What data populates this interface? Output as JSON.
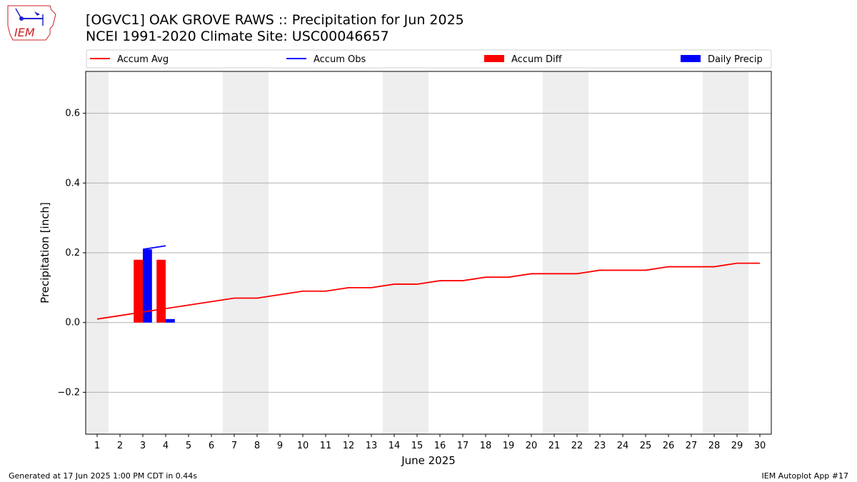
{
  "page": {
    "logo_text": "IEM",
    "title_line1": "[OGVC1] OAK GROVE RAWS :: Precipitation for Jun 2025",
    "title_line2": "NCEI 1991-2020 Climate Site: USC00046657",
    "footer_left": "Generated at 17 Jun 2025 1:00 PM CDT in 0.44s",
    "footer_right": "IEM Autoplot App #17"
  },
  "chart_data": {
    "type": "bar",
    "xlabel": "June 2025",
    "ylabel": "Precipitation [inch]",
    "ylim": [
      -0.32,
      0.72
    ],
    "yticks": [
      -0.2,
      0.0,
      0.2,
      0.4,
      0.6
    ],
    "ytick_labels": [
      "−0.2",
      "0.0",
      "0.2",
      "0.4",
      "0.6"
    ],
    "grid": "horizontal",
    "legend_position": "top",
    "x": [
      1,
      2,
      3,
      4,
      5,
      6,
      7,
      8,
      9,
      10,
      11,
      12,
      13,
      14,
      15,
      16,
      17,
      18,
      19,
      20,
      21,
      22,
      23,
      24,
      25,
      26,
      27,
      28,
      29,
      30
    ],
    "xtick_labels": [
      "1",
      "2",
      "3",
      "4",
      "5",
      "6",
      "7",
      "8",
      "9",
      "10",
      "11",
      "12",
      "13",
      "14",
      "15",
      "16",
      "17",
      "18",
      "19",
      "20",
      "21",
      "22",
      "23",
      "24",
      "25",
      "26",
      "27",
      "28",
      "29",
      "30"
    ],
    "weekend_shading": [
      [
        1,
        1
      ],
      [
        7,
        8
      ],
      [
        14,
        15
      ],
      [
        21,
        22
      ],
      [
        28,
        29
      ]
    ],
    "shade_color": "#eeeeee",
    "series": [
      {
        "name": "Accum Avg",
        "kind": "line",
        "color": "#ff0000",
        "values": [
          0.01,
          0.02,
          0.03,
          0.04,
          0.05,
          0.06,
          0.07,
          0.07,
          0.08,
          0.09,
          0.09,
          0.1,
          0.1,
          0.11,
          0.11,
          0.12,
          0.12,
          0.13,
          0.13,
          0.14,
          0.14,
          0.14,
          0.15,
          0.15,
          0.15,
          0.16,
          0.16,
          0.16,
          0.17,
          0.17
        ]
      },
      {
        "name": "Accum Obs",
        "kind": "line",
        "color": "#0000ff",
        "x": [
          3,
          4
        ],
        "values": [
          0.21,
          0.22
        ]
      },
      {
        "name": "Accum Diff",
        "kind": "bar",
        "color": "#ff0000",
        "x": [
          3,
          4
        ],
        "values": [
          0.18,
          0.18
        ]
      },
      {
        "name": "Daily Precip",
        "kind": "bar",
        "color": "#0000ff",
        "x": [
          3,
          4
        ],
        "values": [
          0.21,
          0.01
        ]
      }
    ]
  }
}
